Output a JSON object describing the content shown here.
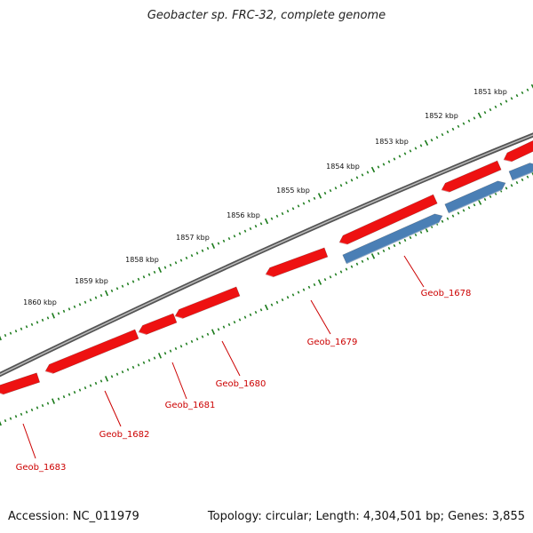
{
  "title": "Geobacter sp. FRC-32, complete genome",
  "footer": {
    "accession": "Accession: NC_011979",
    "summary": "Topology: circular; Length: 4,304,501 bp; Genes: 3,855"
  },
  "colors": {
    "backbone": "#7a7a7a",
    "tick_ring": "#1a7a1a",
    "forward_gene": "#ee1111",
    "reverse_gene": "#4a7fb5",
    "gene_label": "#cc0000"
  },
  "scale_labels": [
    "1851 kbp",
    "1852 kbp",
    "1853 kbp",
    "1854 kbp",
    "1855 kbp",
    "1856 kbp",
    "1857 kbp",
    "1858 kbp",
    "1859 kbp",
    "1860 kbp"
  ],
  "genes": {
    "forward": [
      "Geob_1683",
      "Geob_1682",
      "Geob_1681",
      "Geob_1680",
      "Geob_1679"
    ],
    "reverse": [
      "Geob_1678"
    ]
  },
  "labels": [
    "Geob_1683",
    "Geob_1682",
    "Geob_1681",
    "Geob_1680",
    "Geob_1679",
    "Geob_1678"
  ]
}
